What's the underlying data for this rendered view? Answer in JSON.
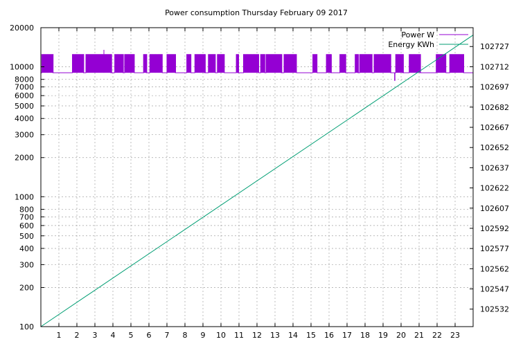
{
  "chart_data": {
    "type": "line",
    "title": "Power consumption Thursday February 09 2017",
    "xlabel": "",
    "ylabel": "",
    "y2label": "",
    "x": {
      "range": [
        0,
        24
      ],
      "ticks": [
        1,
        2,
        3,
        4,
        5,
        6,
        7,
        8,
        9,
        10,
        11,
        12,
        13,
        14,
        15,
        16,
        17,
        18,
        19,
        20,
        21,
        22,
        23
      ],
      "tick_labels": [
        "1",
        "2",
        "3",
        "4",
        "5",
        "6",
        "7",
        "8",
        "9",
        "10",
        "11",
        "12",
        "13",
        "14",
        "15",
        "16",
        "17",
        "18",
        "19",
        "20",
        "21",
        "22",
        "23"
      ]
    },
    "y_left": {
      "scale": "log",
      "range": [
        100,
        20000
      ],
      "ticks": [
        100,
        200,
        300,
        400,
        500,
        600,
        700,
        800,
        1000,
        2000,
        3000,
        4000,
        5000,
        6000,
        7000,
        8000,
        10000,
        20000
      ],
      "tick_labels": [
        "100",
        "200",
        "300",
        "400",
        "500",
        "600",
        "700",
        "800",
        "1000",
        "2000",
        "3000",
        "4000",
        "5000",
        "6000",
        "7000",
        "8000",
        "10000",
        "20000"
      ]
    },
    "y_right": {
      "scale": "linear",
      "range": [
        102519,
        102741
      ],
      "ticks": [
        102532,
        102547,
        102562,
        102577,
        102592,
        102607,
        102622,
        102637,
        102652,
        102667,
        102682,
        102697,
        102712,
        102727
      ],
      "tick_labels": [
        "102532",
        "102547",
        "102562",
        "102577",
        "102592",
        "102607",
        "102622",
        "102637",
        "102652",
        "102667",
        "102682",
        "102697",
        "102712",
        "102727"
      ]
    },
    "grid": true,
    "legend_position": "top-right",
    "series": [
      {
        "name": "Power W",
        "axis": "left",
        "color": "#9400d3",
        "baseline": 9000,
        "high_level": 12500,
        "spike": {
          "x": 3.5,
          "value": 13500
        },
        "dip": {
          "x": 19.65,
          "value": 7800
        },
        "high_intervals": [
          [
            0.05,
            0.7
          ],
          [
            1.75,
            2.4
          ],
          [
            2.5,
            3.95
          ],
          [
            4.1,
            4.6
          ],
          [
            4.65,
            5.2
          ],
          [
            5.7,
            5.9
          ],
          [
            6.05,
            6.75
          ],
          [
            7.0,
            7.5
          ],
          [
            8.1,
            8.35
          ],
          [
            8.55,
            9.15
          ],
          [
            9.3,
            9.7
          ],
          [
            9.8,
            10.2
          ],
          [
            10.85,
            11.0
          ],
          [
            11.25,
            12.1
          ],
          [
            12.2,
            12.45
          ],
          [
            12.5,
            13.4
          ],
          [
            13.5,
            14.2
          ],
          [
            15.1,
            15.35
          ],
          [
            15.85,
            16.15
          ],
          [
            16.6,
            16.95
          ],
          [
            17.45,
            17.65
          ],
          [
            17.7,
            18.4
          ],
          [
            18.5,
            19.45
          ],
          [
            19.7,
            20.15
          ],
          [
            20.45,
            21.1
          ],
          [
            21.95,
            22.5
          ],
          [
            22.7,
            23.5
          ]
        ]
      },
      {
        "name": "Energy KWh",
        "axis": "right",
        "color": "#009e73",
        "x": [
          0,
          24
        ],
        "values": [
          102519.0,
          102735.5
        ]
      }
    ]
  }
}
